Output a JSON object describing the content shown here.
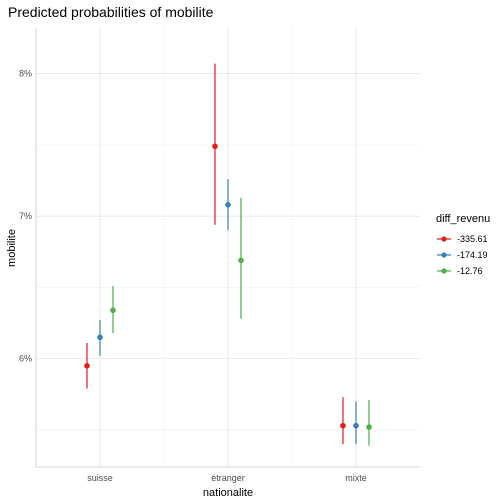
{
  "chart_data": {
    "type": "scatter",
    "title": "Predicted probabilities of mobilite",
    "xlabel": "nationalite",
    "ylabel": "mobilite",
    "categories": [
      "suisse",
      "étranger",
      "mixte"
    ],
    "y_tick_values": [
      0.06,
      0.07,
      0.08
    ],
    "y_tick_labels": [
      "6%",
      "7%",
      "8%"
    ],
    "ylim": [
      0.0524,
      0.0832
    ],
    "grid": true,
    "legend_title": "diff_revenu",
    "legend_position": "right",
    "series": [
      {
        "name": "-335.61",
        "color": "#e41a1c",
        "values": [
          0.0595,
          0.0749,
          0.0553
        ],
        "lower": [
          0.0579,
          0.0694,
          0.054
        ],
        "upper": [
          0.0611,
          0.0807,
          0.0573
        ]
      },
      {
        "name": "-174.19",
        "color": "#377eb8",
        "values": [
          0.0615,
          0.0708,
          0.0553
        ],
        "lower": [
          0.0602,
          0.069,
          0.054
        ],
        "upper": [
          0.0627,
          0.0726,
          0.057
        ]
      },
      {
        "name": "-12.76",
        "color": "#4daf4a",
        "values": [
          0.0634,
          0.0669,
          0.0552
        ],
        "lower": [
          0.0618,
          0.0628,
          0.0539
        ],
        "upper": [
          0.0651,
          0.0713,
          0.0571
        ]
      }
    ]
  }
}
